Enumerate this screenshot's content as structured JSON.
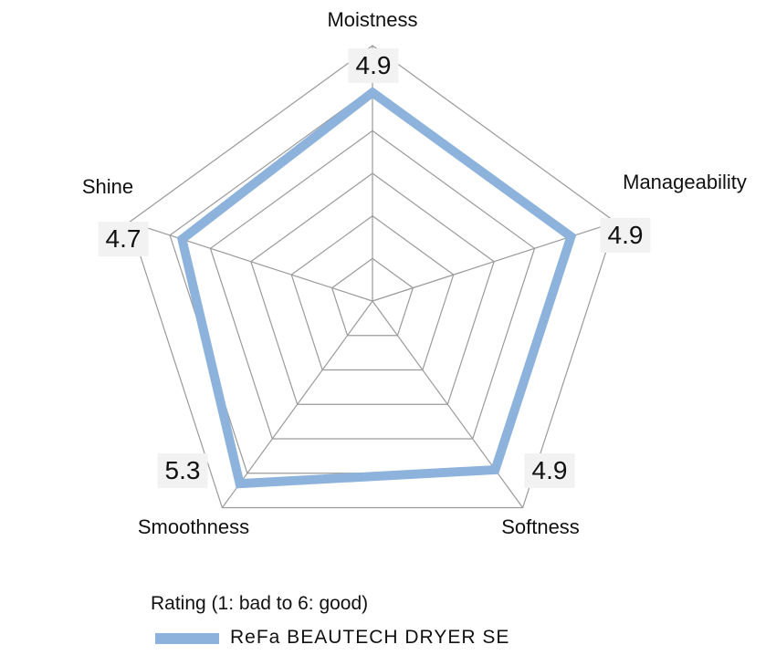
{
  "chart_data": {
    "type": "radar",
    "title": "",
    "categories": [
      "Moistness",
      "Manageability",
      "Softness",
      "Smoothness",
      "Shine"
    ],
    "series": [
      {
        "name": "ReFa BEAUTECH DRYER SE",
        "values": [
          4.9,
          4.9,
          4.9,
          5.3,
          4.7
        ],
        "color": "#8db3dc"
      }
    ],
    "value_labels": [
      "4.9",
      "4.9",
      "4.9",
      "5.3",
      "4.7"
    ],
    "rlim": [
      0,
      6
    ],
    "rings": 6,
    "grid": true,
    "grid_color": "#9a9a9a",
    "legend_title": "Rating (1: bad to 6: good)",
    "legend_position": "bottom"
  }
}
